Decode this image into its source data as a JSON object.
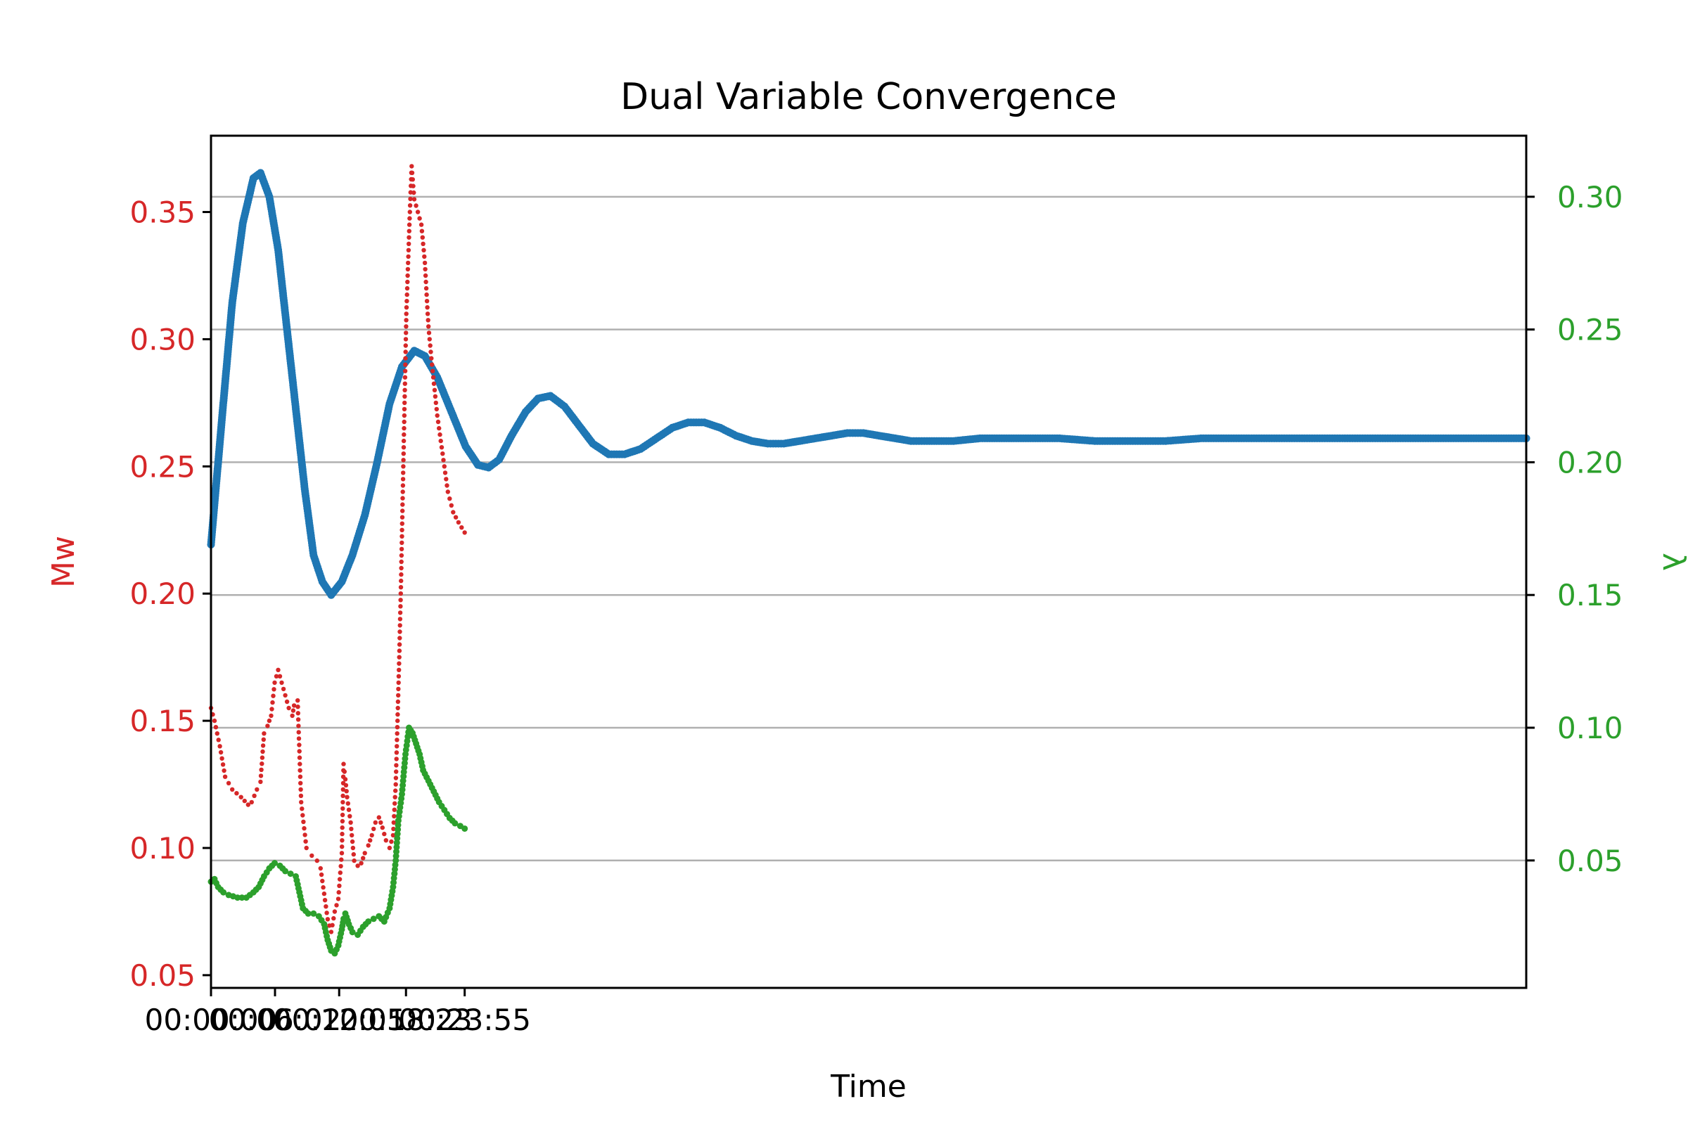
{
  "colors": {
    "mw": "#d62728",
    "lambda": "#2ca02c",
    "dual": "#1f77b4",
    "grid": "#b0b0b0",
    "axis": "#000000"
  },
  "chart_data": {
    "type": "scatter",
    "title": "Dual Variable Convergence",
    "xlabel": "Time",
    "ylabel_left": "Mw",
    "ylabel_right": "λ",
    "x_tick_labels": [
      "00:00:00",
      "00:06:02",
      "00:12:05",
      "00:18:23",
      "00:23:55"
    ],
    "x_tick_positions": [
      0,
      362,
      725,
      1103,
      1435
    ],
    "xlim": [
      0,
      7440
    ],
    "ylim_left": [
      0.045,
      0.38
    ],
    "ylim_right": [
      0.002,
      0.323
    ],
    "yticks_left": [
      "0.05",
      "0.10",
      "0.15",
      "0.20",
      "0.25",
      "0.30",
      "0.35"
    ],
    "yticks_right": [
      "0.05",
      "0.10",
      "0.15",
      "0.20",
      "0.25",
      "0.30"
    ],
    "grid": "horizontal, right axis",
    "series": [
      {
        "name": "Mw",
        "axis": "left",
        "points": [
          [
            0,
            0.155
          ],
          [
            20,
            0.15
          ],
          [
            50,
            0.14
          ],
          [
            80,
            0.128
          ],
          [
            120,
            0.123
          ],
          [
            170,
            0.12
          ],
          [
            210,
            0.117
          ],
          [
            230,
            0.118
          ],
          [
            260,
            0.123
          ],
          [
            280,
            0.126
          ],
          [
            300,
            0.145
          ],
          [
            320,
            0.148
          ],
          [
            340,
            0.152
          ],
          [
            360,
            0.165
          ],
          [
            380,
            0.17
          ],
          [
            400,
            0.165
          ],
          [
            420,
            0.16
          ],
          [
            440,
            0.155
          ],
          [
            460,
            0.152
          ],
          [
            470,
            0.156
          ],
          [
            490,
            0.158
          ],
          [
            510,
            0.118
          ],
          [
            540,
            0.1
          ],
          [
            570,
            0.097
          ],
          [
            600,
            0.095
          ],
          [
            620,
            0.092
          ],
          [
            640,
            0.082
          ],
          [
            660,
            0.072
          ],
          [
            680,
            0.067
          ],
          [
            700,
            0.075
          ],
          [
            720,
            0.08
          ],
          [
            740,
            0.098
          ],
          [
            750,
            0.133
          ],
          [
            760,
            0.127
          ],
          [
            770,
            0.12
          ],
          [
            790,
            0.11
          ],
          [
            810,
            0.095
          ],
          [
            830,
            0.093
          ],
          [
            850,
            0.094
          ],
          [
            870,
            0.098
          ],
          [
            890,
            0.101
          ],
          [
            910,
            0.105
          ],
          [
            930,
            0.11
          ],
          [
            950,
            0.112
          ],
          [
            970,
            0.108
          ],
          [
            990,
            0.103
          ],
          [
            1010,
            0.1
          ],
          [
            1030,
            0.105
          ],
          [
            1045,
            0.125
          ],
          [
            1055,
            0.15
          ],
          [
            1065,
            0.175
          ],
          [
            1075,
            0.205
          ],
          [
            1085,
            0.24
          ],
          [
            1095,
            0.275
          ],
          [
            1105,
            0.31
          ],
          [
            1115,
            0.33
          ],
          [
            1125,
            0.35
          ],
          [
            1135,
            0.368
          ],
          [
            1150,
            0.355
          ],
          [
            1170,
            0.35
          ],
          [
            1190,
            0.345
          ],
          [
            1210,
            0.33
          ],
          [
            1230,
            0.305
          ],
          [
            1250,
            0.29
          ],
          [
            1280,
            0.27
          ],
          [
            1310,
            0.255
          ],
          [
            1340,
            0.24
          ],
          [
            1370,
            0.232
          ],
          [
            1400,
            0.228
          ],
          [
            1435,
            0.224
          ]
        ]
      },
      {
        "name": "λ",
        "axis": "right",
        "points": [
          [
            0,
            0.042
          ],
          [
            20,
            0.043
          ],
          [
            40,
            0.04
          ],
          [
            70,
            0.038
          ],
          [
            100,
            0.037
          ],
          [
            150,
            0.036
          ],
          [
            200,
            0.036
          ],
          [
            240,
            0.038
          ],
          [
            270,
            0.04
          ],
          [
            300,
            0.044
          ],
          [
            330,
            0.047
          ],
          [
            360,
            0.049
          ],
          [
            390,
            0.048
          ],
          [
            420,
            0.046
          ],
          [
            450,
            0.045
          ],
          [
            480,
            0.044
          ],
          [
            500,
            0.038
          ],
          [
            520,
            0.032
          ],
          [
            550,
            0.03
          ],
          [
            580,
            0.03
          ],
          [
            610,
            0.029
          ],
          [
            640,
            0.026
          ],
          [
            660,
            0.02
          ],
          [
            680,
            0.016
          ],
          [
            700,
            0.015
          ],
          [
            720,
            0.018
          ],
          [
            740,
            0.024
          ],
          [
            750,
            0.028
          ],
          [
            760,
            0.03
          ],
          [
            780,
            0.026
          ],
          [
            800,
            0.023
          ],
          [
            830,
            0.022
          ],
          [
            860,
            0.025
          ],
          [
            890,
            0.027
          ],
          [
            920,
            0.028
          ],
          [
            950,
            0.029
          ],
          [
            980,
            0.027
          ],
          [
            1010,
            0.032
          ],
          [
            1030,
            0.04
          ],
          [
            1045,
            0.05
          ],
          [
            1060,
            0.065
          ],
          [
            1080,
            0.075
          ],
          [
            1100,
            0.09
          ],
          [
            1120,
            0.1
          ],
          [
            1140,
            0.098
          ],
          [
            1160,
            0.094
          ],
          [
            1180,
            0.09
          ],
          [
            1200,
            0.084
          ],
          [
            1230,
            0.08
          ],
          [
            1260,
            0.076
          ],
          [
            1290,
            0.072
          ],
          [
            1320,
            0.069
          ],
          [
            1350,
            0.066
          ],
          [
            1380,
            0.064
          ],
          [
            1410,
            0.063
          ],
          [
            1435,
            0.062
          ]
        ]
      },
      {
        "name": "",
        "axis": "right",
        "points": [
          [
            0,
            0.169
          ],
          [
            60,
            0.215
          ],
          [
            120,
            0.26
          ],
          [
            180,
            0.29
          ],
          [
            240,
            0.307
          ],
          [
            280,
            0.309
          ],
          [
            330,
            0.3
          ],
          [
            380,
            0.28
          ],
          [
            430,
            0.25
          ],
          [
            480,
            0.22
          ],
          [
            530,
            0.19
          ],
          [
            580,
            0.165
          ],
          [
            630,
            0.155
          ],
          [
            680,
            0.15
          ],
          [
            740,
            0.155
          ],
          [
            800,
            0.165
          ],
          [
            870,
            0.18
          ],
          [
            940,
            0.2
          ],
          [
            1010,
            0.222
          ],
          [
            1080,
            0.236
          ],
          [
            1150,
            0.242
          ],
          [
            1210,
            0.24
          ],
          [
            1280,
            0.232
          ],
          [
            1360,
            0.219
          ],
          [
            1440,
            0.206
          ],
          [
            1510,
            0.199
          ],
          [
            1570,
            0.198
          ],
          [
            1630,
            0.201
          ],
          [
            1700,
            0.21
          ],
          [
            1780,
            0.219
          ],
          [
            1850,
            0.224
          ],
          [
            1920,
            0.225
          ],
          [
            2000,
            0.221
          ],
          [
            2080,
            0.214
          ],
          [
            2160,
            0.207
          ],
          [
            2250,
            0.203
          ],
          [
            2340,
            0.203
          ],
          [
            2430,
            0.205
          ],
          [
            2520,
            0.209
          ],
          [
            2610,
            0.213
          ],
          [
            2700,
            0.215
          ],
          [
            2790,
            0.215
          ],
          [
            2880,
            0.213
          ],
          [
            2970,
            0.21
          ],
          [
            3060,
            0.208
          ],
          [
            3150,
            0.207
          ],
          [
            3240,
            0.207
          ],
          [
            3330,
            0.208
          ],
          [
            3420,
            0.209
          ],
          [
            3510,
            0.21
          ],
          [
            3600,
            0.211
          ],
          [
            3690,
            0.211
          ],
          [
            3780,
            0.21
          ],
          [
            3870,
            0.209
          ],
          [
            3960,
            0.208
          ],
          [
            4050,
            0.208
          ],
          [
            4200,
            0.208
          ],
          [
            4350,
            0.209
          ],
          [
            4500,
            0.209
          ],
          [
            4650,
            0.209
          ],
          [
            4800,
            0.209
          ],
          [
            5000,
            0.208
          ],
          [
            5200,
            0.208
          ],
          [
            5400,
            0.208
          ],
          [
            5600,
            0.209
          ],
          [
            5800,
            0.209
          ],
          [
            6000,
            0.209
          ],
          [
            6200,
            0.209
          ],
          [
            6400,
            0.209
          ],
          [
            6600,
            0.209
          ],
          [
            6800,
            0.209
          ],
          [
            7000,
            0.209
          ],
          [
            7200,
            0.209
          ],
          [
            7440,
            0.209
          ]
        ]
      }
    ]
  }
}
